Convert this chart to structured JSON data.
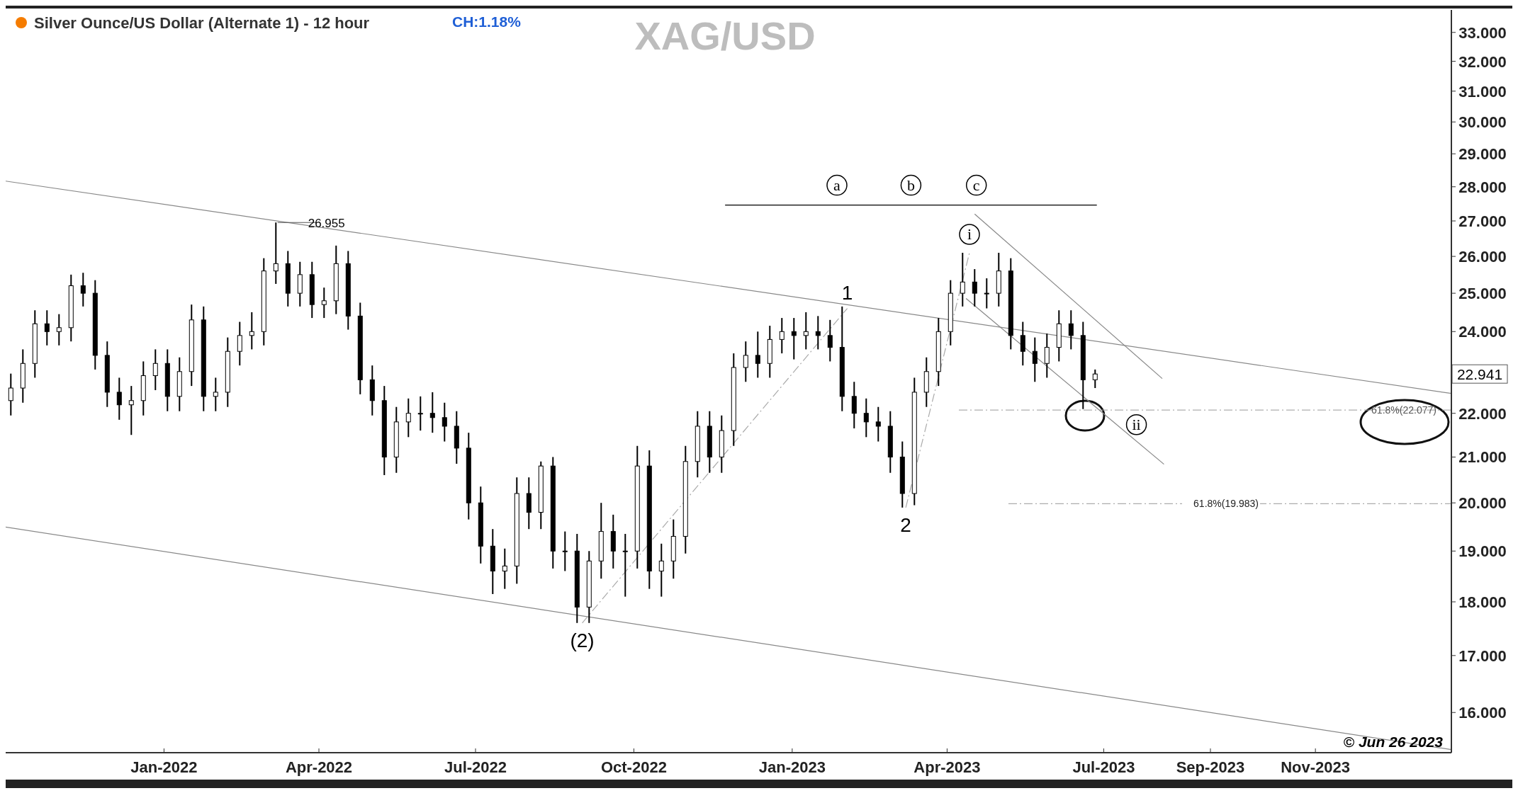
{
  "chart_data": {
    "type": "candlestick",
    "title": "XAG/USD",
    "subtitle": "Silver Ounce/US Dollar (Alternate 1) - 12 hour",
    "color": "#000000",
    "log": true,
    "xlim": [
      "2021-10-01",
      "2024-01-19"
    ],
    "xticks": [
      {
        "value": "2022-01-01",
        "label": "Jan-2022"
      },
      {
        "value": "2022-04-01",
        "label": "Apr-2022"
      },
      {
        "value": "2022-07-01",
        "label": "Jul-2022"
      },
      {
        "value": "2022-10-01",
        "label": "Oct-2022"
      },
      {
        "value": "2023-01-01",
        "label": "Jan-2023"
      },
      {
        "value": "2023-04-01",
        "label": "Apr-2023"
      },
      {
        "value": "2023-07-01",
        "label": "Jul-2023"
      },
      {
        "value": "2023-09-01",
        "label": "Sep-2023"
      },
      {
        "value": "2023-11-01",
        "label": "Nov-2023"
      }
    ],
    "ylim": [
      15.33,
      33.8
    ],
    "yticks": [
      {
        "value": 16,
        "label": "16.000"
      },
      {
        "value": 17,
        "label": "17.000"
      },
      {
        "value": 18,
        "label": "18.000"
      },
      {
        "value": 19,
        "label": "19.000"
      },
      {
        "value": 20,
        "label": "20.000"
      },
      {
        "value": 21,
        "label": "21.000"
      },
      {
        "value": 22,
        "label": "22.000"
      },
      {
        "value": 24,
        "label": "24.000"
      },
      {
        "value": 25,
        "label": "25.000"
      },
      {
        "value": 26,
        "label": "26.000"
      },
      {
        "value": 27,
        "label": "27.000"
      },
      {
        "value": 28,
        "label": "28.000"
      },
      {
        "value": 29,
        "label": "29.000"
      },
      {
        "value": 30,
        "label": "30.000"
      },
      {
        "value": 31,
        "label": "31.000"
      },
      {
        "value": 32,
        "label": "32.000"
      },
      {
        "value": 33,
        "label": "33.000"
      }
    ],
    "x": [
      "2021-10-04",
      "2021-10-11",
      "2021-10-18",
      "2021-10-25",
      "2021-11-01",
      "2021-11-08",
      "2021-11-15",
      "2021-11-22",
      "2021-11-29",
      "2021-12-06",
      "2021-12-13",
      "2021-12-20",
      "2021-12-27",
      "2022-01-03",
      "2022-01-10",
      "2022-01-17",
      "2022-01-24",
      "2022-01-31",
      "2022-02-07",
      "2022-02-14",
      "2022-02-21",
      "2022-02-28",
      "2022-03-07",
      "2022-03-14",
      "2022-03-21",
      "2022-03-28",
      "2022-04-04",
      "2022-04-11",
      "2022-04-18",
      "2022-04-25",
      "2022-05-02",
      "2022-05-09",
      "2022-05-16",
      "2022-05-23",
      "2022-05-30",
      "2022-06-06",
      "2022-06-13",
      "2022-06-20",
      "2022-06-27",
      "2022-07-04",
      "2022-07-11",
      "2022-07-18",
      "2022-07-25",
      "2022-08-01",
      "2022-08-08",
      "2022-08-15",
      "2022-08-22",
      "2022-08-29",
      "2022-09-05",
      "2022-09-12",
      "2022-09-19",
      "2022-09-26",
      "2022-10-03",
      "2022-10-10",
      "2022-10-17",
      "2022-10-24",
      "2022-10-31",
      "2022-11-07",
      "2022-11-14",
      "2022-11-21",
      "2022-11-28",
      "2022-12-05",
      "2022-12-12",
      "2022-12-19",
      "2022-12-26",
      "2023-01-02",
      "2023-01-09",
      "2023-01-16",
      "2023-01-23",
      "2023-01-30",
      "2023-02-06",
      "2023-02-13",
      "2023-02-20",
      "2023-02-27",
      "2023-03-06",
      "2023-03-13",
      "2023-03-20",
      "2023-03-27",
      "2023-04-03",
      "2023-04-10",
      "2023-04-17",
      "2023-04-24",
      "2023-05-01",
      "2023-05-08",
      "2023-05-15",
      "2023-05-22",
      "2023-05-29",
      "2023-06-05",
      "2023-06-12",
      "2023-06-19",
      "2023-06-26"
    ],
    "ohlc": [
      [
        22.3,
        22.95,
        21.95,
        22.6
      ],
      [
        22.6,
        23.55,
        22.25,
        23.2
      ],
      [
        23.2,
        24.55,
        22.85,
        24.2
      ],
      [
        24.2,
        24.55,
        23.65,
        24.0
      ],
      [
        24.0,
        24.45,
        23.65,
        24.1
      ],
      [
        24.1,
        25.5,
        23.75,
        25.2
      ],
      [
        25.2,
        25.55,
        24.65,
        25.0
      ],
      [
        25.0,
        25.35,
        23.05,
        23.4
      ],
      [
        23.4,
        23.75,
        22.15,
        22.5
      ],
      [
        22.5,
        22.85,
        21.85,
        22.2
      ],
      [
        22.2,
        22.65,
        21.5,
        22.3
      ],
      [
        22.3,
        23.25,
        21.95,
        22.9
      ],
      [
        22.9,
        23.55,
        22.55,
        23.2
      ],
      [
        23.2,
        23.55,
        22.05,
        22.4
      ],
      [
        22.4,
        23.35,
        22.05,
        23.0
      ],
      [
        23.0,
        24.7,
        22.65,
        24.3
      ],
      [
        24.3,
        24.65,
        22.05,
        22.4
      ],
      [
        22.4,
        22.85,
        22.05,
        22.5
      ],
      [
        22.5,
        23.85,
        22.15,
        23.5
      ],
      [
        23.5,
        24.25,
        23.15,
        23.9
      ],
      [
        23.9,
        24.5,
        23.55,
        24.0
      ],
      [
        24.0,
        25.95,
        23.65,
        25.6
      ],
      [
        25.6,
        26.955,
        25.25,
        25.8
      ],
      [
        25.8,
        26.15,
        24.65,
        25.0
      ],
      [
        25.0,
        25.85,
        24.65,
        25.5
      ],
      [
        25.5,
        25.85,
        24.35,
        24.7
      ],
      [
        24.7,
        25.15,
        24.35,
        24.8
      ],
      [
        24.8,
        26.3,
        24.45,
        25.8
      ],
      [
        25.8,
        26.15,
        24.05,
        24.4
      ],
      [
        24.4,
        24.75,
        22.45,
        22.8
      ],
      [
        22.8,
        23.15,
        21.95,
        22.3
      ],
      [
        22.3,
        22.65,
        20.6,
        21.0
      ],
      [
        21.0,
        22.15,
        20.65,
        21.8
      ],
      [
        21.8,
        22.35,
        21.45,
        22.0
      ],
      [
        22.0,
        22.4,
        21.6,
        22.0
      ],
      [
        22.0,
        22.5,
        21.55,
        21.9
      ],
      [
        21.9,
        22.25,
        21.35,
        21.7
      ],
      [
        21.7,
        22.05,
        20.85,
        21.2
      ],
      [
        21.2,
        21.55,
        19.65,
        20.0
      ],
      [
        20.0,
        20.35,
        18.75,
        19.1
      ],
      [
        19.1,
        19.45,
        18.15,
        18.6
      ],
      [
        18.6,
        19.05,
        18.25,
        18.7
      ],
      [
        18.7,
        20.55,
        18.35,
        20.2
      ],
      [
        20.2,
        20.55,
        19.45,
        19.8
      ],
      [
        19.8,
        20.9,
        19.45,
        20.8
      ],
      [
        20.8,
        21.0,
        18.65,
        19.0
      ],
      [
        19.0,
        19.4,
        18.6,
        19.0
      ],
      [
        19.0,
        19.35,
        17.6,
        17.9
      ],
      [
        17.9,
        19.0,
        17.6,
        18.8
      ],
      [
        18.8,
        20.0,
        18.45,
        19.4
      ],
      [
        19.4,
        19.75,
        18.65,
        19.0
      ],
      [
        19.0,
        19.35,
        18.1,
        19.0
      ],
      [
        19.0,
        21.25,
        18.65,
        20.8
      ],
      [
        20.8,
        21.15,
        18.25,
        18.6
      ],
      [
        18.6,
        19.15,
        18.1,
        18.8
      ],
      [
        18.8,
        19.65,
        18.45,
        19.3
      ],
      [
        19.3,
        21.25,
        18.95,
        20.9
      ],
      [
        20.9,
        22.05,
        20.55,
        21.7
      ],
      [
        21.7,
        22.05,
        20.65,
        21.0
      ],
      [
        21.0,
        21.95,
        20.65,
        21.6
      ],
      [
        21.6,
        23.45,
        21.25,
        23.1
      ],
      [
        23.1,
        23.75,
        22.75,
        23.4
      ],
      [
        23.4,
        24.0,
        22.85,
        23.2
      ],
      [
        23.2,
        24.15,
        22.85,
        23.8
      ],
      [
        23.8,
        24.35,
        23.45,
        24.0
      ],
      [
        24.0,
        24.35,
        23.3,
        23.9
      ],
      [
        23.9,
        24.5,
        23.55,
        24.0
      ],
      [
        24.0,
        24.4,
        23.55,
        23.9
      ],
      [
        23.9,
        24.3,
        23.25,
        23.6
      ],
      [
        23.6,
        24.65,
        22.05,
        22.4
      ],
      [
        22.4,
        22.75,
        21.65,
        22.0
      ],
      [
        22.0,
        22.35,
        21.45,
        21.8
      ],
      [
        21.8,
        22.15,
        21.35,
        21.7
      ],
      [
        21.7,
        22.05,
        20.65,
        21.0
      ],
      [
        21.0,
        21.35,
        19.9,
        20.2
      ],
      [
        20.2,
        22.85,
        19.95,
        22.5
      ],
      [
        22.5,
        23.35,
        22.15,
        23.0
      ],
      [
        23.0,
        24.35,
        22.65,
        24.0
      ],
      [
        24.0,
        25.35,
        23.65,
        25.0
      ],
      [
        25.0,
        26.1,
        24.65,
        25.3
      ],
      [
        25.3,
        25.65,
        24.65,
        25.0
      ],
      [
        25.0,
        25.4,
        24.6,
        25.0
      ],
      [
        25.0,
        26.1,
        24.65,
        25.6
      ],
      [
        25.6,
        25.95,
        23.55,
        23.9
      ],
      [
        23.9,
        24.25,
        23.15,
        23.5
      ],
      [
        23.5,
        23.85,
        22.75,
        23.2
      ],
      [
        23.2,
        23.95,
        22.85,
        23.6
      ],
      [
        23.6,
        24.55,
        23.25,
        24.2
      ],
      [
        24.2,
        24.55,
        23.55,
        23.9
      ],
      [
        23.9,
        24.25,
        22.1,
        22.8
      ],
      [
        22.8,
        23.05,
        22.6,
        22.941
      ]
    ],
    "series": [
      {
        "type": "line",
        "color": "#888888",
        "line_style": "solid",
        "x": [
          "2021-10-01",
          "2024-01-19"
        ],
        "values": [
          28.17,
          22.47
        ]
      },
      {
        "type": "line",
        "color": "#888888",
        "line_style": "solid",
        "x": [
          "2021-10-01",
          "2024-01-19"
        ],
        "values": [
          19.49,
          15.38
        ]
      },
      {
        "type": "line",
        "color": "#888888",
        "line_style": "solid",
        "x": [
          "2023-04-17",
          "2023-08-04"
        ],
        "values": [
          27.2,
          22.83
        ]
      },
      {
        "type": "line",
        "color": "#888888",
        "line_style": "solid",
        "x": [
          "2023-04-12",
          "2023-08-05"
        ],
        "values": [
          24.86,
          20.84
        ]
      },
      {
        "type": "line",
        "color": "#aaaaaa",
        "line_style": "dashed",
        "x": [
          "2022-09-01",
          "2023-02-02"
        ],
        "values": [
          17.6,
          24.6
        ]
      },
      {
        "type": "line",
        "color": "#aaaaaa",
        "line_style": "dashed",
        "x": [
          "2023-03-08",
          "2023-04-14"
        ],
        "values": [
          19.9,
          26.1
        ]
      },
      {
        "type": "line",
        "color": "#000000",
        "line_style": "solid",
        "x": [
          "2022-11-23",
          "2023-06-27"
        ],
        "values": [
          27.46,
          27.46
        ]
      }
    ],
    "ref_lines": [
      {
        "axis": "y",
        "value": 22.077,
        "label": "61.8%(22.077)",
        "color": "#999999",
        "line_style": "dashed"
      },
      {
        "axis": "y",
        "value": 19.983,
        "label": "61.8%(19.983)",
        "color": "#999999",
        "line_style": "dashed"
      }
    ],
    "annotations": [
      "CH:1.18%",
      "© Jun 26 2023",
      "22.941",
      {
        "text": "26.955",
        "x": "2022-03-08",
        "y": 26.955
      },
      {
        "text": "(2)",
        "x": "2022-09-01",
        "y": 17.6
      },
      {
        "text": "1",
        "x": "2023-02-02",
        "y": 24.65
      },
      {
        "text": "2",
        "x": "2023-03-08",
        "y": 19.9
      },
      {
        "text": "i",
        "x": "2023-04-14",
        "y": 26.1
      },
      {
        "text": "ii",
        "x": "2023-07-20",
        "y": 22.0
      },
      {
        "text": "a",
        "x": "2023-01-27",
        "y": 27.46
      },
      {
        "text": "b",
        "x": "2023-03-11",
        "y": 27.46
      },
      {
        "text": "c",
        "x": "2023-04-18",
        "y": 27.46
      }
    ]
  }
}
